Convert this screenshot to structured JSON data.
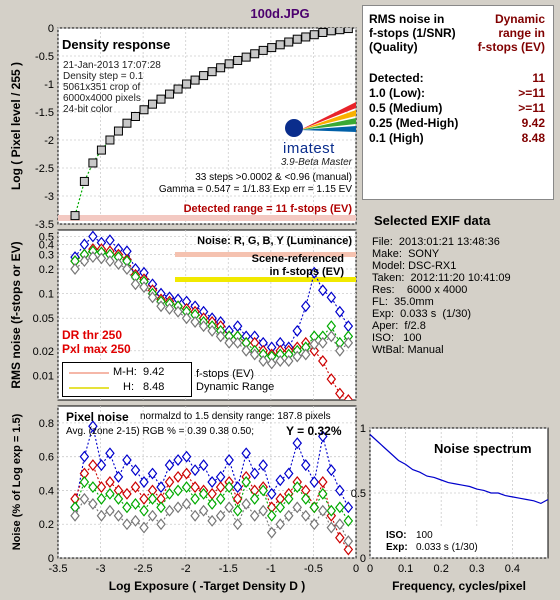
{
  "figure_title": "100d.JPG",
  "density_panel": {
    "heading": "Density response",
    "info_lines": [
      "21-Jan-2013 17:07:28",
      "Density step = 0.1",
      "5061x351 crop of",
      "6000x4000 pixels",
      "24-bit color"
    ],
    "logo_text": "imatest",
    "version": "3.9-Beta  Master",
    "steps_text": "33 steps >0.0002 & <0.96 (manual)",
    "gamma_text": "Gamma = 0.547 = 1/1.83  Exp err = 1.15 EV",
    "detected_range": "Detected range = 11 f-stops (EV)"
  },
  "noise_panel": {
    "heading": "Noise: R, G, B, Y (Luminance)",
    "scene_ref_1": "Scene-referenced",
    "scene_ref_2": "in f-stops (EV)",
    "dr_thr": "DR thr 250",
    "pxl_max": "Pxl max 250",
    "legend_mh_label": "M-H:",
    "legend_mh_value": "9.42",
    "legend_h_label": "H:",
    "legend_h_value": "8.48",
    "legend_right_1": "f-stops (EV)",
    "legend_right_2": "Dynamic Range"
  },
  "pixel_panel": {
    "heading": "Pixel noise",
    "norm_text": "normalzd to 1.5 density range: 187.8 pixels",
    "avg_text": "Avg. (zone 2-15) RGB % = 0.39  0.38  0.50;",
    "y_text": "Y = 0.32%"
  },
  "spectrum_panel": {
    "heading": "Noise spectrum",
    "iso_label": "ISO:",
    "iso_value": "100",
    "exp_label": "Exp:",
    "exp_value": "0.033 s   (1/30)",
    "xlabel": "Frequency, cycles/pixel"
  },
  "summary": {
    "header_left": [
      "RMS noise in",
      "f-stops (1/SNR)",
      "(Quality)"
    ],
    "header_right": [
      "Dynamic",
      "range in",
      "f-stops (EV)"
    ],
    "rows": [
      {
        "label": "Detected:",
        "value": "11"
      },
      {
        "label": "1.0  (Low):",
        "value": ">=11"
      },
      {
        "label": "0.5  (Medium)",
        "value": ">=11"
      },
      {
        "label": "0.25 (Med-High)",
        "value": "9.42"
      },
      {
        "label": "0.1  (High)",
        "value": "8.48"
      }
    ]
  },
  "exif": {
    "title": "Selected EXIF data",
    "lines": [
      "File:  2013:01:21 13:48:36",
      "Make:  SONY",
      "Model: DSC-RX1",
      "Taken:  2012:11:20 10:41:09",
      "Res:    6000 x 4000",
      "FL:  35.0mm",
      "Exp:  0.033 s  (1/30)",
      "Aper:  f/2.8",
      "ISO:   100",
      "WtBal: Manual"
    ]
  },
  "chart_data": [
    {
      "type": "scatter",
      "name_printed": "Density response",
      "ylabel": "Log ( Pixel level / 255 )",
      "xlim": [
        -3.5,
        0
      ],
      "ylim": [
        -3.5,
        0
      ],
      "yticks": [
        0,
        -0.5,
        -1,
        -1.5,
        -2,
        -2.5,
        -3,
        -3.5
      ],
      "xticks": [
        -3.5,
        -3,
        -2.5,
        -2,
        -1.5,
        -1,
        -0.5,
        0
      ],
      "series": [
        {
          "values_x": [
            -3.3,
            -3.19,
            -3.09,
            -2.99,
            -2.89,
            -2.79,
            -2.69,
            -2.59,
            -2.49,
            -2.39,
            -2.29,
            -2.19,
            -2.09,
            -1.99,
            -1.89,
            -1.79,
            -1.69,
            -1.59,
            -1.49,
            -1.39,
            -1.29,
            -1.19,
            -1.09,
            -0.99,
            -0.89,
            -0.79,
            -0.69,
            -0.59,
            -0.49,
            -0.39,
            -0.29,
            -0.19,
            -0.09
          ],
          "values_y": [
            -3.35,
            -2.74,
            -2.41,
            -2.18,
            -2.0,
            -1.84,
            -1.7,
            -1.58,
            -1.46,
            -1.36,
            -1.27,
            -1.18,
            -1.09,
            -1.0,
            -0.93,
            -0.85,
            -0.78,
            -0.71,
            -0.64,
            -0.58,
            -0.52,
            -0.46,
            -0.4,
            -0.35,
            -0.3,
            -0.25,
            -0.2,
            -0.16,
            -0.12,
            -0.08,
            -0.05,
            -0.03,
            -0.01
          ]
        }
      ]
    },
    {
      "type": "line",
      "name_printed": "Noise: R, G, B, Y (Luminance)",
      "ylabel": "RMS noise (f-stops or EV)",
      "yscale": "log",
      "ylim": [
        0.005,
        0.6
      ],
      "yticks": [
        0.5,
        0.4,
        0.3,
        0.2,
        0.1,
        0.05,
        0.02,
        0.01
      ],
      "x": [
        -3.3,
        -3.19,
        -3.09,
        -2.99,
        -2.89,
        -2.79,
        -2.69,
        -2.59,
        -2.49,
        -2.39,
        -2.29,
        -2.19,
        -2.09,
        -1.99,
        -1.89,
        -1.79,
        -1.69,
        -1.59,
        -1.49,
        -1.39,
        -1.29,
        -1.19,
        -1.09,
        -0.99,
        -0.89,
        -0.79,
        -0.69,
        -0.59,
        -0.49,
        -0.39,
        -0.29,
        -0.19,
        -0.09
      ],
      "series": [
        {
          "color": "#0000cc",
          "values": [
            0.28,
            0.4,
            0.5,
            0.42,
            0.45,
            0.35,
            0.33,
            0.2,
            0.18,
            0.13,
            0.1,
            0.09,
            0.085,
            0.08,
            0.07,
            0.06,
            0.05,
            0.045,
            0.035,
            0.04,
            0.03,
            0.03,
            0.025,
            0.022,
            0.025,
            0.022,
            0.035,
            0.07,
            0.18,
            0.11,
            0.09,
            0.06,
            0.04
          ]
        },
        {
          "color": "#cc0000",
          "values": [
            0.25,
            0.3,
            0.35,
            0.35,
            0.33,
            0.3,
            0.26,
            0.17,
            0.15,
            0.11,
            0.085,
            0.08,
            0.07,
            0.065,
            0.06,
            0.05,
            0.045,
            0.04,
            0.03,
            0.03,
            0.025,
            0.025,
            0.02,
            0.018,
            0.02,
            0.02,
            0.022,
            0.025,
            0.02,
            0.015,
            0.009,
            0.006,
            0.005
          ]
        },
        {
          "color": "#00aa00",
          "values": [
            0.25,
            0.3,
            0.33,
            0.32,
            0.3,
            0.28,
            0.25,
            0.16,
            0.14,
            0.1,
            0.08,
            0.075,
            0.07,
            0.06,
            0.055,
            0.045,
            0.04,
            0.035,
            0.03,
            0.03,
            0.025,
            0.02,
            0.018,
            0.017,
            0.018,
            0.018,
            0.02,
            0.022,
            0.03,
            0.03,
            0.04,
            0.025,
            0.03
          ]
        },
        {
          "color": "#777777",
          "values": [
            0.2,
            0.25,
            0.28,
            0.27,
            0.25,
            0.23,
            0.2,
            0.13,
            0.12,
            0.09,
            0.07,
            0.065,
            0.06,
            0.05,
            0.045,
            0.04,
            0.035,
            0.03,
            0.025,
            0.025,
            0.02,
            0.018,
            0.015,
            0.014,
            0.015,
            0.015,
            0.017,
            0.018,
            0.024,
            0.025,
            0.03,
            0.02,
            0.025
          ]
        }
      ]
    },
    {
      "type": "line",
      "name_printed": "Pixel noise",
      "ylabel": "Noise (% of Log exp = 1.5)",
      "xlabel": "Log Exposure ( -Target Density D )",
      "xlim": [
        -3.5,
        0
      ],
      "ylim": [
        0,
        0.9
      ],
      "yticks": [
        0.8,
        0.6,
        0.4,
        0.2,
        0
      ],
      "x": [
        -3.3,
        -3.19,
        -3.09,
        -2.99,
        -2.89,
        -2.79,
        -2.69,
        -2.59,
        -2.49,
        -2.39,
        -2.29,
        -2.19,
        -2.09,
        -1.99,
        -1.89,
        -1.79,
        -1.69,
        -1.59,
        -1.49,
        -1.39,
        -1.29,
        -1.19,
        -1.09,
        -0.99,
        -0.89,
        -0.79,
        -0.69,
        -0.59,
        -0.49,
        -0.39,
        -0.29,
        -0.19,
        -0.09
      ],
      "series": [
        {
          "color": "#0000cc",
          "values": [
            0.3,
            0.6,
            0.78,
            0.55,
            0.62,
            0.48,
            0.58,
            0.52,
            0.45,
            0.5,
            0.42,
            0.55,
            0.58,
            0.6,
            0.52,
            0.55,
            0.45,
            0.48,
            0.58,
            0.42,
            0.62,
            0.5,
            0.55,
            0.38,
            0.46,
            0.5,
            0.68,
            0.55,
            0.45,
            0.72,
            0.52,
            0.4,
            0.3
          ]
        },
        {
          "color": "#cc0000",
          "values": [
            0.35,
            0.5,
            0.55,
            0.42,
            0.45,
            0.4,
            0.38,
            0.42,
            0.35,
            0.4,
            0.35,
            0.45,
            0.48,
            0.5,
            0.42,
            0.4,
            0.38,
            0.42,
            0.45,
            0.35,
            0.48,
            0.4,
            0.42,
            0.3,
            0.35,
            0.38,
            0.45,
            0.4,
            0.3,
            0.45,
            0.25,
            0.12,
            0.05
          ]
        },
        {
          "color": "#00aa00",
          "values": [
            0.3,
            0.45,
            0.42,
            0.35,
            0.38,
            0.35,
            0.3,
            0.32,
            0.28,
            0.35,
            0.3,
            0.38,
            0.4,
            0.42,
            0.35,
            0.38,
            0.32,
            0.35,
            0.42,
            0.28,
            0.45,
            0.35,
            0.4,
            0.25,
            0.3,
            0.35,
            0.42,
            0.35,
            0.3,
            0.38,
            0.28,
            0.3,
            0.22
          ]
        },
        {
          "color": "#777777",
          "values": [
            0.25,
            0.35,
            0.32,
            0.25,
            0.28,
            0.25,
            0.2,
            0.22,
            0.18,
            0.25,
            0.2,
            0.28,
            0.3,
            0.32,
            0.25,
            0.28,
            0.22,
            0.25,
            0.3,
            0.2,
            0.32,
            0.25,
            0.28,
            0.15,
            0.2,
            0.25,
            0.3,
            0.25,
            0.2,
            0.28,
            0.18,
            0.2,
            0.1
          ]
        }
      ]
    },
    {
      "type": "line",
      "name_printed": "Noise spectrum",
      "xlabel": "Frequency, cycles/pixel",
      "xlim": [
        0,
        0.5
      ],
      "ylim": [
        0,
        1
      ],
      "xticks": [
        0,
        0.1,
        0.2,
        0.3,
        0.4
      ],
      "yticks": [
        1,
        0.5,
        0
      ],
      "series": [
        {
          "color": "#0000cc",
          "x": [
            0,
            0.02,
            0.04,
            0.06,
            0.08,
            0.1,
            0.12,
            0.14,
            0.16,
            0.18,
            0.2,
            0.22,
            0.24,
            0.26,
            0.28,
            0.3,
            0.32,
            0.34,
            0.36,
            0.38,
            0.4,
            0.42,
            0.44,
            0.46,
            0.48,
            0.5
          ],
          "values": [
            0.95,
            0.9,
            0.85,
            0.8,
            0.75,
            0.72,
            0.68,
            0.66,
            0.63,
            0.62,
            0.6,
            0.58,
            0.57,
            0.56,
            0.55,
            0.53,
            0.52,
            0.5,
            0.5,
            0.48,
            0.47,
            0.46,
            0.45,
            0.44,
            0.42,
            0.45
          ]
        }
      ]
    }
  ]
}
